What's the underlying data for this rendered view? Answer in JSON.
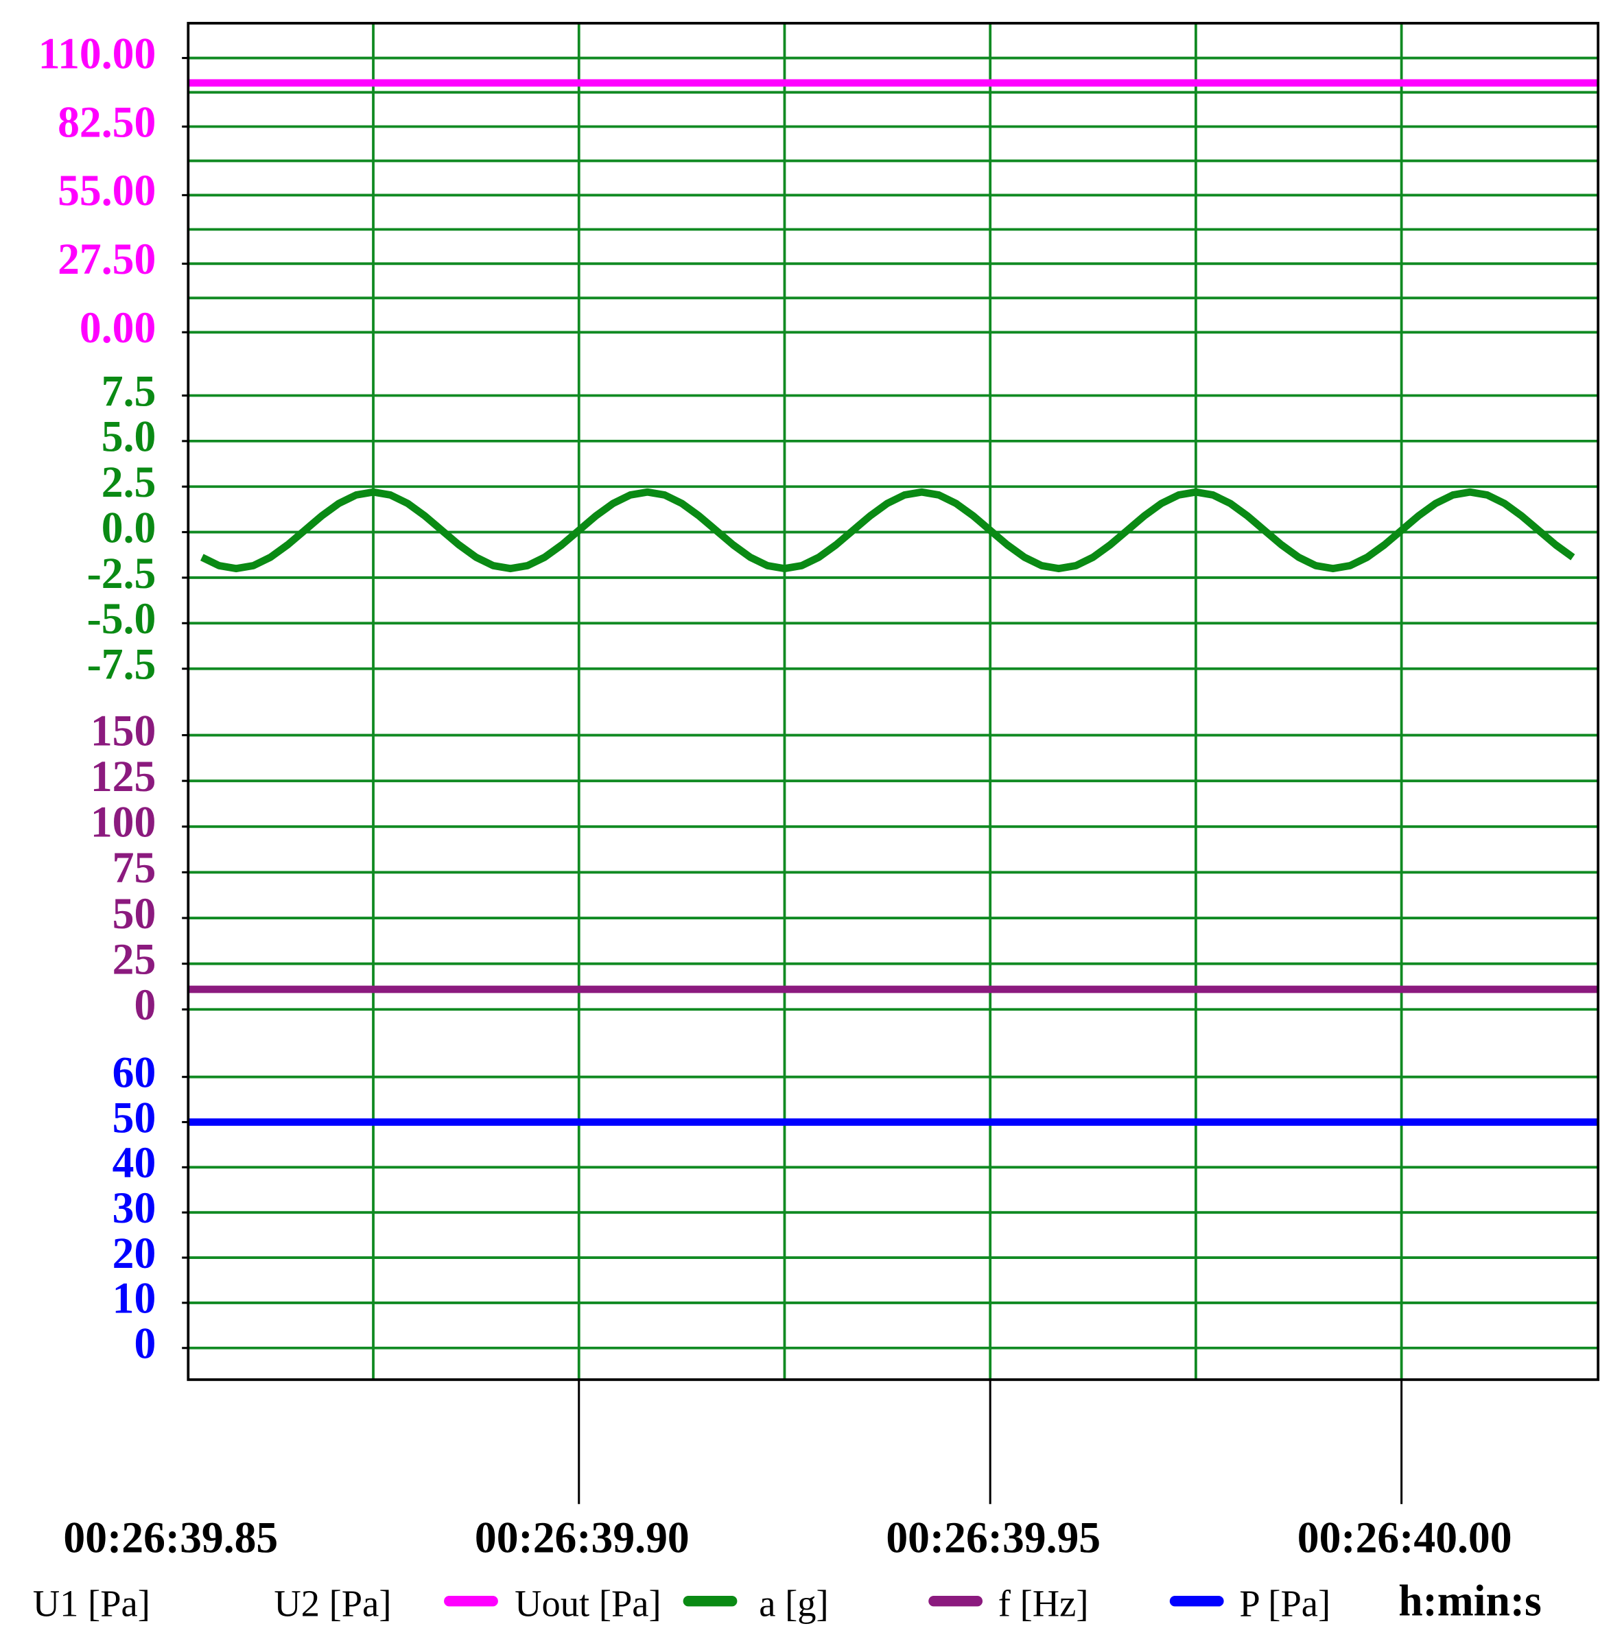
{
  "chart_data": {
    "type": "line",
    "xlabel": "h:min:s",
    "xlim": [
      1599.8525,
      1600.0239
    ],
    "xticks": [
      {
        "value": 1599.85,
        "label": "00:26:39.85"
      },
      {
        "value": 1599.9,
        "label": "00:26:39.90"
      },
      {
        "value": 1599.95,
        "label": "00:26:39.95"
      },
      {
        "value": 1600,
        "label": "00:26:40.00"
      }
    ],
    "x_minor_ticks": [
      1599.875,
      1599.925,
      1599.975
    ],
    "grid": true,
    "grid_color": "#108a22",
    "series": [
      {
        "name": "U1 [Pa]",
        "x": [],
        "values": []
      },
      {
        "name": "U2 [Pa]",
        "x": [],
        "values": []
      },
      {
        "name": "Uout [Pa]",
        "color": "#ff00ff",
        "x": [
          1599.8525,
          1600.0239
        ],
        "values": [
          100,
          100
        ],
        "ylim": [
          0,
          110
        ],
        "yticks": [
          {
            "value": 0,
            "label": "0.00"
          },
          {
            "value": 27.5,
            "label": "27.50"
          },
          {
            "value": 55,
            "label": "55.00"
          },
          {
            "value": 82.5,
            "label": "82.50"
          },
          {
            "value": 110,
            "label": "110.00"
          }
        ],
        "minor_yticks": [
          13.75,
          41.25,
          68.75,
          96.25
        ]
      },
      {
        "name": "a [g]",
        "color": "#0a8a14",
        "x": [
          1599.85417,
          1599.85625,
          1599.85833,
          1599.86042,
          1599.8625,
          1599.86458,
          1599.86667,
          1599.86875,
          1599.87083,
          1599.87292,
          1599.875,
          1599.87708,
          1599.87917,
          1599.88125,
          1599.88333,
          1599.88542,
          1599.8875,
          1599.88958,
          1599.89167,
          1599.89375,
          1599.89583,
          1599.89792,
          1599.9,
          1599.90208,
          1599.90417,
          1599.90625,
          1599.90833,
          1599.91042,
          1599.9125,
          1599.91458,
          1599.91667,
          1599.91875,
          1599.92083,
          1599.92292,
          1599.925,
          1599.92708,
          1599.92917,
          1599.93125,
          1599.93333,
          1599.93542,
          1599.9375,
          1599.93958,
          1599.94167,
          1599.94375,
          1599.94583,
          1599.94792,
          1599.95,
          1599.95208,
          1599.95417,
          1599.95625,
          1599.95833,
          1599.96042,
          1599.9625,
          1599.96458,
          1599.96667,
          1599.96875,
          1599.97083,
          1599.97292,
          1599.975,
          1599.97708,
          1599.97917,
          1599.98125,
          1599.98333,
          1599.98542,
          1599.9875,
          1599.98958,
          1599.99167,
          1599.99375,
          1599.99583,
          1599.99792,
          1600,
          1600.00208,
          1600.00417,
          1600.00625,
          1600.00833,
          1600.01042,
          1600.0125,
          1600.01458,
          1600.01667,
          1600.01875,
          1600.02083
        ],
        "values": [
          -1.38,
          -1.84,
          -2.0,
          -1.84,
          -1.38,
          -0.7,
          0.1,
          0.9,
          1.58,
          2.04,
          2.2,
          2.04,
          1.58,
          0.9,
          0.1,
          -0.7,
          -1.38,
          -1.84,
          -2.0,
          -1.84,
          -1.38,
          -0.7,
          0.1,
          0.9,
          1.58,
          2.04,
          2.2,
          2.04,
          1.58,
          0.9,
          0.1,
          -0.7,
          -1.38,
          -1.84,
          -2.0,
          -1.84,
          -1.38,
          -0.7,
          0.1,
          0.9,
          1.58,
          2.04,
          2.2,
          2.04,
          1.58,
          0.9,
          0.1,
          -0.7,
          -1.38,
          -1.84,
          -2.0,
          -1.84,
          -1.38,
          -0.7,
          0.1,
          0.9,
          1.58,
          2.04,
          2.2,
          2.04,
          1.58,
          0.9,
          0.1,
          -0.7,
          -1.38,
          -1.84,
          -2.0,
          -1.84,
          -1.38,
          -0.7,
          0.1,
          0.9,
          1.58,
          2.04,
          2.2,
          2.04,
          1.58,
          0.9,
          0.1,
          -0.7,
          -1.38
        ],
        "ylim": [
          -7.5,
          7.5
        ],
        "yticks": [
          {
            "value": -7.5,
            "label": "-7.5"
          },
          {
            "value": -5,
            "label": "-5.0"
          },
          {
            "value": -2.5,
            "label": "-2.5"
          },
          {
            "value": 0,
            "label": "0.0"
          },
          {
            "value": 2.5,
            "label": "2.5"
          },
          {
            "value": 5,
            "label": "5.0"
          },
          7.5
        ]
      },
      {
        "name": "f [Hz]",
        "color": "#8b1a7e",
        "x": [
          1599.8525,
          1600.0239
        ],
        "values": [
          11,
          11
        ],
        "ylim": [
          0,
          150
        ],
        "yticks": [
          0,
          25,
          50,
          75,
          100,
          125,
          150
        ]
      },
      {
        "name": "P [Pa]",
        "color": "#0000ff",
        "x": [
          1599.8525,
          1600.0239
        ],
        "values": [
          50,
          50
        ],
        "ylim": [
          0,
          60
        ],
        "yticks": [
          0,
          10,
          20,
          30,
          40,
          50,
          60
        ]
      }
    ]
  }
}
